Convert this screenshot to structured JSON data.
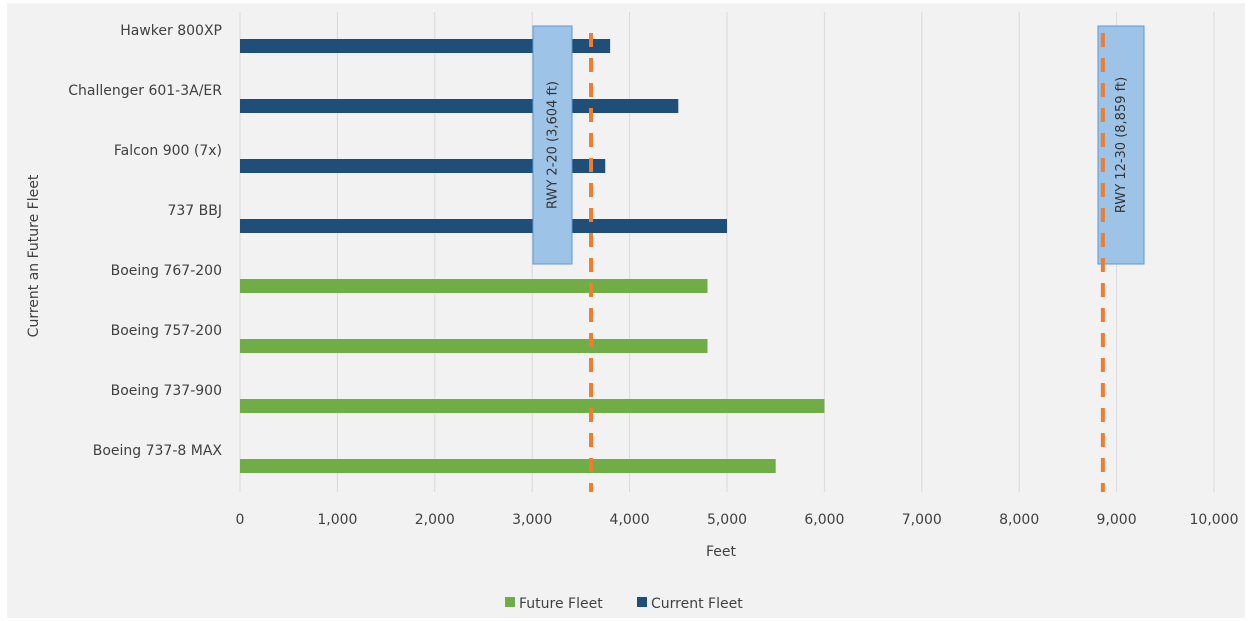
{
  "chart_data": {
    "type": "bar",
    "orientation": "horizontal",
    "categories": [
      "Hawker 800XP",
      "Challenger 601-3A/ER",
      "Falcon 900 (7x)",
      "737 BBJ",
      "Boeing 767-200",
      "Boeing 757-200",
      "Boeing 737-900",
      "Boeing 737-8 MAX"
    ],
    "series": [
      {
        "name": "Future Fleet",
        "color": "#70ad47",
        "values": [
          null,
          null,
          null,
          null,
          4800,
          4800,
          6000,
          5500
        ]
      },
      {
        "name": "Current Fleet",
        "color": "#1f4e79",
        "values": [
          3800,
          4500,
          3750,
          5000,
          null,
          null,
          null,
          null
        ]
      }
    ],
    "reference_lines": [
      {
        "label": "RWY 2-20 (3,604 ft)",
        "value": 3604,
        "color": "#ed7d31"
      },
      {
        "label": "RWY 12-30 (8,859 ft)",
        "value": 8859,
        "color": "#ed7d31"
      }
    ],
    "xlabel": "Feet",
    "ylabel": "Current an Future Fleet",
    "xlim": [
      0,
      10000
    ],
    "xticks": [
      "0",
      "1,000",
      "2,000",
      "3,000",
      "4,000",
      "5,000",
      "6,000",
      "7,000",
      "8,000",
      "9,000",
      "10,000"
    ],
    "grid": "vertical",
    "legend_position": "bottom"
  }
}
